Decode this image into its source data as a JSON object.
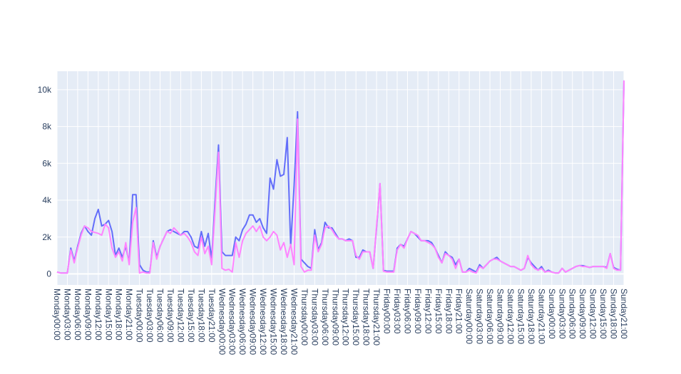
{
  "chart_data": {
    "type": "line",
    "title": "",
    "xlabel": "",
    "ylabel": "",
    "ylim": [
      -600,
      11000
    ],
    "y_ticks": [
      0,
      2000,
      4000,
      6000,
      8000,
      10000
    ],
    "y_tick_labels": [
      "0",
      "2k",
      "4k",
      "6k",
      "8k",
      "10k"
    ],
    "x_tick_labels": [
      "Monday00:00",
      "Monday03:00",
      "Monday06:00",
      "Monday09:00",
      "Monday12:00",
      "Monday15:00",
      "Monday18:00",
      "Monday21:00",
      "Tuesday00:00",
      "Tuesday03:00",
      "Tuesday06:00",
      "Tuesday09:00",
      "Tuesday12:00",
      "Tuesday15:00",
      "Tuesday18:00",
      "Tuesday21:00",
      "Wednesday00:00",
      "Wednesday03:00",
      "Wednesday06:00",
      "Wednesday09:00",
      "Wednesday12:00",
      "Wednesday15:00",
      "Wednesday18:00",
      "Wednesday21:00",
      "Thursday00:00",
      "Thursday03:00",
      "Thursday06:00",
      "Thursday09:00",
      "Thursday12:00",
      "Thursday15:00",
      "Thursday18:00",
      "Thursday21:00",
      "Friday00:00",
      "Friday03:00",
      "Friday06:00",
      "Friday09:00",
      "Friday12:00",
      "Friday15:00",
      "Friday18:00",
      "Friday21:00",
      "Saturday00:00",
      "Saturday03:00",
      "Saturday06:00",
      "Saturday09:00",
      "Saturday12:00",
      "Saturday15:00",
      "Saturday18:00",
      "Saturday21:00",
      "Sunday00:00",
      "Sunday03:00",
      "Sunday06:00",
      "Sunday09:00",
      "Sunday12:00",
      "Sunday15:00",
      "Sunday18:00",
      "Sunday21:00"
    ],
    "series": [
      {
        "color": "#636efa",
        "values": [
          100,
          50,
          50,
          50,
          1400,
          700,
          1500,
          2200,
          2600,
          2300,
          2100,
          3000,
          3500,
          2600,
          2700,
          2900,
          2300,
          1000,
          1400,
          900,
          1500,
          600,
          4300,
          4300,
          500,
          200,
          100,
          100,
          1800,
          900,
          1500,
          1900,
          2300,
          2400,
          2300,
          2200,
          2100,
          2300,
          2300,
          2000,
          1500,
          1400,
          2300,
          1500,
          2200,
          800,
          4000,
          7000,
          1200,
          1000,
          1000,
          1000,
          2000,
          1800,
          2400,
          2700,
          3200,
          3200,
          2800,
          3000,
          2500,
          2200,
          5200,
          4600,
          6200,
          5300,
          5400,
          7400,
          1500,
          4800,
          8800,
          800,
          600,
          400,
          300,
          2400,
          1300,
          1700,
          2800,
          2500,
          2500,
          2200,
          1900,
          1900,
          1800,
          1900,
          1800,
          900,
          900,
          1300,
          1200,
          1200,
          300,
          2500,
          4900,
          200,
          150,
          150,
          150,
          1400,
          1600,
          1500,
          1900,
          2300,
          2200,
          2000,
          1800,
          1800,
          1800,
          1700,
          1400,
          1000,
          600,
          1200,
          1000,
          900,
          500,
          800,
          100,
          100,
          300,
          200,
          100,
          500,
          300,
          500,
          700,
          800,
          900,
          700,
          600,
          500,
          400,
          400,
          300,
          200,
          300,
          900,
          600,
          400,
          200,
          400,
          100,
          200,
          100,
          50,
          50,
          300,
          100,
          200,
          300,
          400,
          450,
          450,
          400,
          350,
          400,
          400,
          400,
          400,
          350,
          1100,
          350,
          250,
          200,
          10500
        ]
      },
      {
        "color": "#ff84ff",
        "values": [
          100,
          50,
          50,
          50,
          1300,
          600,
          1400,
          2100,
          2600,
          2500,
          2300,
          2250,
          2200,
          2100,
          2700,
          2500,
          1400,
          900,
          1200,
          700,
          1700,
          500,
          2800,
          3600,
          50,
          100,
          50,
          50,
          1700,
          800,
          1500,
          1900,
          2300,
          2200,
          2500,
          2300,
          2100,
          2200,
          2000,
          1700,
          1200,
          1000,
          2000,
          1100,
          1500,
          500,
          3500,
          6600,
          300,
          200,
          250,
          100,
          1700,
          900,
          1800,
          2200,
          2400,
          2600,
          2300,
          2600,
          2000,
          1800,
          2000,
          2300,
          2100,
          1300,
          1700,
          900,
          1600,
          500,
          8400,
          400,
          100,
          200,
          200,
          2100,
          1200,
          1600,
          2500,
          2600,
          2400,
          2100,
          1900,
          1900,
          1800,
          1800,
          1800,
          1000,
          800,
          1200,
          1200,
          1200,
          300,
          2600,
          4900,
          150,
          100,
          100,
          100,
          1300,
          1600,
          1400,
          1900,
          2300,
          2200,
          2100,
          1800,
          1800,
          1700,
          1600,
          1400,
          900,
          600,
          1100,
          1000,
          800,
          300,
          800,
          100,
          100,
          200,
          100,
          50,
          400,
          300,
          500,
          700,
          800,
          800,
          700,
          600,
          500,
          400,
          400,
          300,
          200,
          300,
          1000,
          500,
          300,
          200,
          300,
          100,
          150,
          100,
          50,
          50,
          300,
          100,
          200,
          300,
          400,
          450,
          400,
          400,
          350,
          400,
          400,
          400,
          400,
          300,
          1100,
          300,
          200,
          200,
          10500
        ]
      }
    ]
  }
}
